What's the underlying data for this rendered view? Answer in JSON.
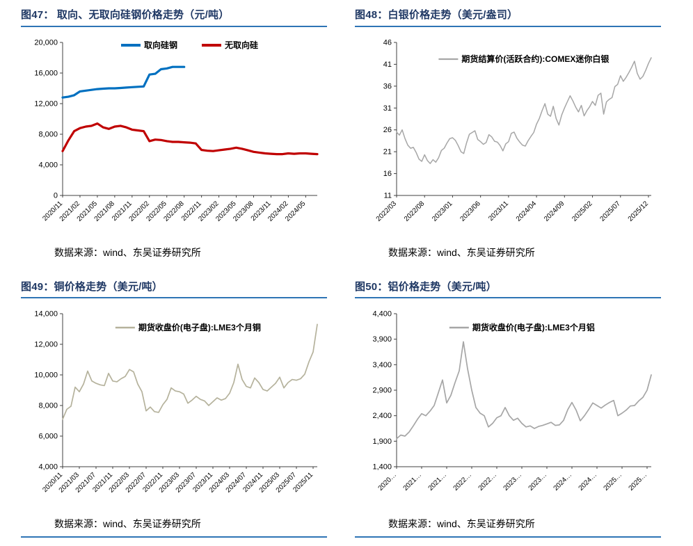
{
  "page": {
    "background": "#ffffff",
    "title_color": "#1f3864",
    "rule_color": "#2e74b5"
  },
  "source_text": "数据来源：wind、东吴证券研究所",
  "charts": [
    {
      "title": "图47：  取向、无取向硅钢价格走势（元/吨）",
      "chart_data": {
        "type": "line",
        "title": "取向、无取向硅钢价格走势（元/吨）",
        "legend_position": "top-center",
        "legend_dy": 4,
        "ylim": [
          0,
          20000
        ],
        "yticks": [
          0,
          4000,
          8000,
          12000,
          16000,
          20000
        ],
        "tick_every": 3,
        "x_labels": [
          "2020/11",
          "2021/02",
          "2021/05",
          "2021/08",
          "2021/11",
          "2022/02",
          "2022/05",
          "2022/08",
          "2022/11",
          "2023/02",
          "2023/05",
          "2023/08",
          "2023/11",
          "2024/02",
          "2024/05"
        ],
        "series": [
          {
            "name": "取向硅钢",
            "color": "#0070c0",
            "width": 3.2,
            "values": [
              12800,
              12900,
              13100,
              13600,
              13700,
              13800,
              13900,
              13950,
              14000,
              14000,
              14050,
              14100,
              14150,
              14200,
              14250,
              15800,
              15900,
              16500,
              16600,
              16800,
              16800,
              16800,
              null,
              null,
              null,
              null,
              null,
              null,
              null,
              null,
              null,
              null,
              null,
              null,
              null,
              null,
              null,
              null,
              null,
              null,
              null,
              null,
              null,
              null,
              null
            ]
          },
          {
            "name": "无取向硅",
            "color": "#c00000",
            "width": 3.2,
            "values": [
              5800,
              7200,
              8400,
              8800,
              9000,
              9100,
              9400,
              8900,
              8700,
              9000,
              9100,
              8900,
              8600,
              8500,
              8400,
              7100,
              7300,
              7250,
              7100,
              7000,
              7000,
              6950,
              6900,
              6800,
              5950,
              5850,
              5800,
              5900,
              6000,
              6100,
              6250,
              6100,
              5900,
              5700,
              5600,
              5500,
              5450,
              5400,
              5400,
              5500,
              5450,
              5500,
              5500,
              5450,
              5400
            ]
          }
        ]
      }
    },
    {
      "title": "图48：白银价格走势（美元/盎司）",
      "chart_data": {
        "type": "line",
        "title": "白银价格走势（美元/盎司）",
        "legend_position": "top-center",
        "legend_dy": 24,
        "ylim": [
          11,
          46
        ],
        "yticks": [
          11,
          16,
          21,
          26,
          31,
          36,
          41,
          46
        ],
        "tick_every": 10,
        "x_labels": [
          "2022/03",
          "2022/08",
          "2023/01",
          "2023/06",
          "2023/11",
          "2024/04",
          "2024/09",
          "2025/02",
          "2025/07",
          "2025/12"
        ],
        "series": [
          {
            "name": "期货结算价(活跃合约):COMEX迷你白银",
            "color": "#a6a6a6",
            "width": 1.5,
            "values": [
              25.5,
              24.8,
              26.0,
              24.0,
              22.5,
              21.8,
              22.0,
              20.8,
              19.3,
              18.8,
              20.3,
              19.0,
              18.3,
              19.2,
              18.6,
              19.6,
              21.3,
              21.8,
              23.0,
              24.0,
              24.2,
              23.6,
              22.4,
              21.0,
              20.6,
              23.0,
              25.0,
              25.4,
              25.8,
              23.8,
              23.3,
              22.7,
              23.1,
              24.9,
              24.4,
              23.4,
              23.2,
              22.4,
              21.2,
              22.8,
              23.3,
              25.2,
              25.5,
              24.1,
              23.2,
              22.5,
              22.3,
              23.5,
              24.5,
              25.4,
              27.3,
              28.6,
              30.4,
              32.0,
              29.6,
              29.1,
              31.4,
              28.6,
              27.1,
              29.4,
              31.0,
              32.4,
              33.8,
              32.6,
              31.2,
              30.1,
              31.6,
              29.2,
              30.4,
              31.3,
              32.5,
              31.6,
              33.9,
              34.4,
              29.6,
              32.4,
              33.0,
              33.4,
              35.9,
              36.4,
              38.4,
              37.1,
              38.0,
              39.1,
              40.3,
              41.7,
              38.9,
              37.6,
              38.2,
              39.6,
              41.2,
              42.5
            ]
          }
        ]
      }
    },
    {
      "title": "图49：铜价格走势（美元/吨）",
      "chart_data": {
        "type": "line",
        "title": "铜价格走势（美元/吨）",
        "legend_position": "top-center",
        "legend_dy": 20,
        "ylim": [
          4000,
          14000
        ],
        "yticks": [
          4000,
          6000,
          8000,
          10000,
          12000,
          14000
        ],
        "tick_every": 4,
        "x_labels": [
          "2020/11",
          "2021/03",
          "2021/07",
          "2021/11",
          "2022/03",
          "2022/07",
          "2022/11",
          "2023/03",
          "2023/07",
          "2023/11",
          "2024/03",
          "2024/07",
          "2024/11",
          "2025/03",
          "2025/07",
          "2025/11"
        ],
        "series": [
          {
            "name": "期货收盘价(电子盘):LME3个月铜",
            "color": "#b5b29c",
            "width": 1.7,
            "values": [
              7100,
              7750,
              7950,
              9200,
              8900,
              9400,
              10250,
              9600,
              9450,
              9350,
              9300,
              10100,
              9600,
              9550,
              9750,
              9900,
              10350,
              10200,
              9400,
              8900,
              7650,
              7900,
              7600,
              7550,
              8050,
              8400,
              9150,
              8950,
              8900,
              8750,
              8150,
              8350,
              8600,
              8400,
              8300,
              8000,
              8250,
              8500,
              8350,
              8450,
              8800,
              9500,
              10700,
              9700,
              9250,
              9150,
              9800,
              9500,
              9050,
              8950,
              9200,
              9450,
              9850,
              9150,
              9500,
              9700,
              9650,
              9750,
              10050,
              10850,
              11500,
              13300
            ]
          }
        ]
      }
    },
    {
      "title": "图50：铝价格走势（美元/吨）",
      "chart_data": {
        "type": "line",
        "title": "铝价格走势（美元/吨）",
        "legend_position": "top-center",
        "legend_dy": 20,
        "ylim": [
          1400,
          4400
        ],
        "yticks": [
          1400,
          1900,
          2400,
          2900,
          3400,
          3900,
          4400
        ],
        "tick_every": 6,
        "x_labels": [
          "2020…",
          "2021…",
          "2021…",
          "2022…",
          "2022…",
          "2023…",
          "2023…",
          "2024…",
          "2024…",
          "2025…",
          "2025…"
        ],
        "series": [
          {
            "name": "期货收盘价(电子盘):LME3个月铝",
            "color": "#a6a6a6",
            "width": 1.7,
            "values": [
              1950,
              2020,
              2000,
              2080,
              2200,
              2330,
              2440,
              2400,
              2490,
              2600,
              2850,
              3100,
              2650,
              2800,
              3050,
              3280,
              3850,
              3320,
              2900,
              2560,
              2450,
              2400,
              2180,
              2250,
              2360,
              2400,
              2560,
              2400,
              2310,
              2350,
              2250,
              2180,
              2200,
              2150,
              2190,
              2210,
              2240,
              2270,
              2210,
              2220,
              2310,
              2520,
              2660,
              2510,
              2300,
              2400,
              2520,
              2650,
              2600,
              2550,
              2610,
              2660,
              2700,
              2400,
              2450,
              2510,
              2590,
              2600,
              2690,
              2760,
              2900,
              3200
            ]
          }
        ]
      }
    }
  ]
}
